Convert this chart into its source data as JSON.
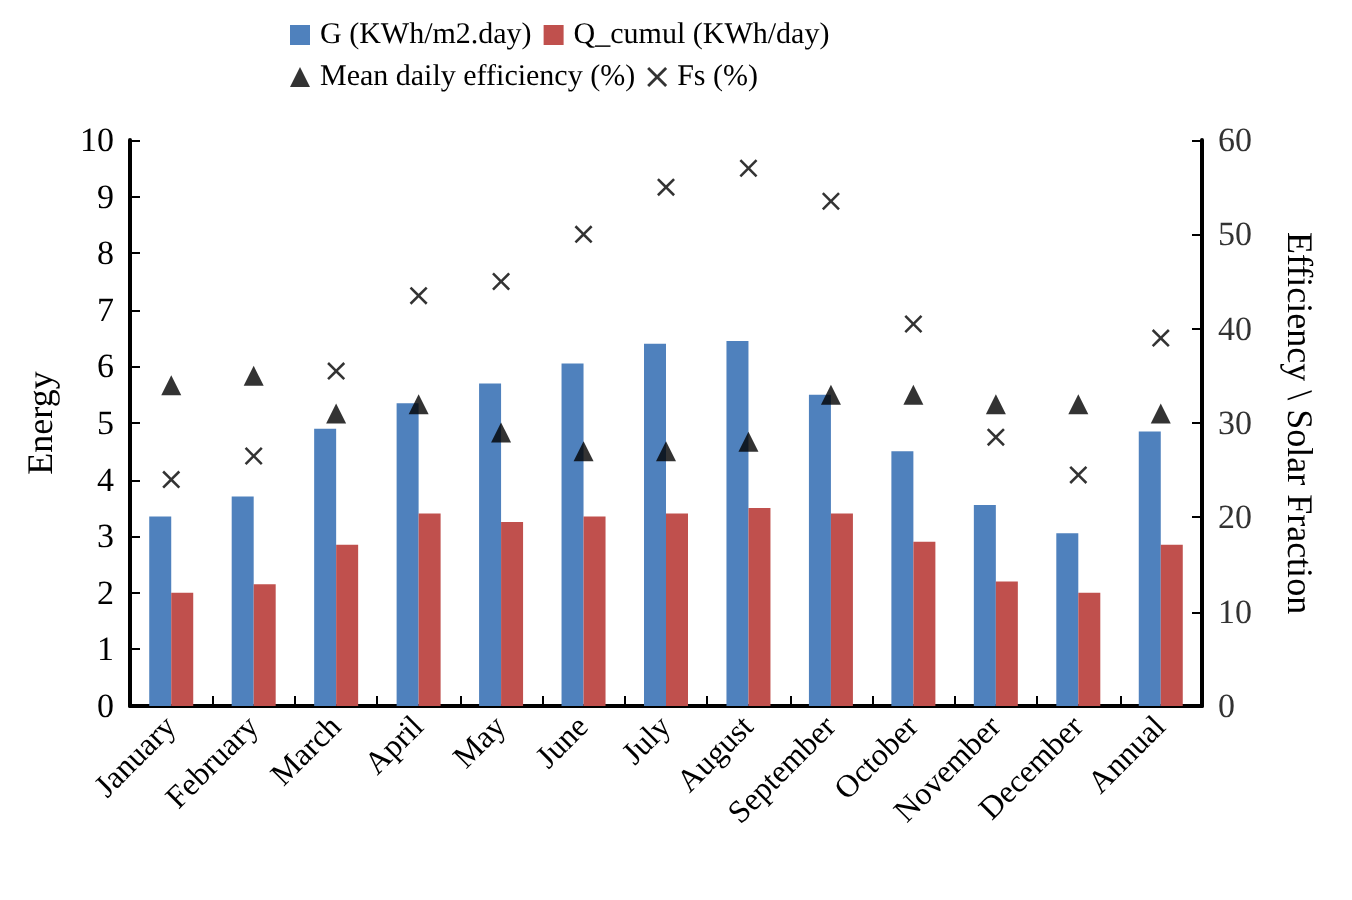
{
  "chart_data": {
    "type": "bar",
    "ylabel": "Energy",
    "y2label": "Efficiency \\ Solar Fraction",
    "categories": [
      "January",
      "February",
      "March",
      "April",
      "May",
      "June",
      "July",
      "August",
      "September",
      "October",
      "November",
      "December",
      "Annual"
    ],
    "series": [
      {
        "name": "G (KWh/m2.day)",
        "color": "#4f81bd",
        "values": [
          3.35,
          3.7,
          4.9,
          5.35,
          5.7,
          6.05,
          6.4,
          6.45,
          5.5,
          4.5,
          3.55,
          3.05,
          4.85
        ]
      },
      {
        "name": "Q_cumul (KWh/day)",
        "color": "#c0504d",
        "values": [
          2.0,
          2.15,
          2.85,
          3.4,
          3.25,
          3.35,
          3.4,
          3.5,
          3.4,
          2.9,
          2.2,
          2.0,
          2.85
        ]
      },
      {
        "name": "Mean daily efficiency (%)",
        "type": "scatter",
        "axis": "y2",
        "marker": "triangle",
        "color": "#000000",
        "values": [
          34,
          35,
          31,
          32,
          29,
          27,
          27,
          28,
          33,
          33,
          32,
          32,
          31
        ]
      },
      {
        "name": "Fs (%)",
        "type": "scatter",
        "axis": "y2",
        "marker": "cross",
        "color": "#000000",
        "values": [
          24,
          26.5,
          35.5,
          43.5,
          45,
          50,
          55,
          57,
          53.5,
          40.5,
          28.5,
          24.5,
          39
        ]
      }
    ],
    "ylim": [
      0,
      10
    ],
    "yticks": [
      0,
      1,
      2,
      3,
      4,
      5,
      6,
      7,
      8,
      9,
      10
    ],
    "y2lim": [
      0,
      60
    ],
    "y2ticks": [
      0,
      10,
      20,
      30,
      40,
      50,
      60
    ],
    "grid": false,
    "legend": "top"
  }
}
